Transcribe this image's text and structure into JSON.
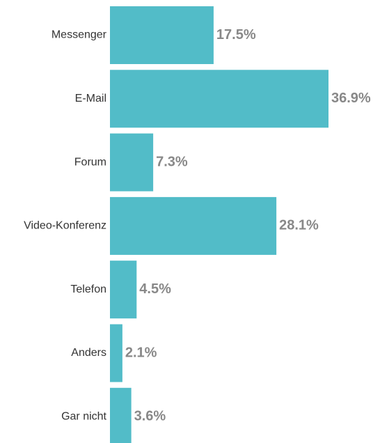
{
  "chart_data": {
    "type": "bar",
    "orientation": "horizontal",
    "categories": [
      "Messenger",
      "E-Mail",
      "Forum",
      "Video-Konferenz",
      "Telefon",
      "Anders",
      "Gar nicht"
    ],
    "values": [
      17.5,
      36.9,
      7.3,
      28.1,
      4.5,
      2.1,
      3.6
    ],
    "value_labels": [
      "17.5%",
      "36.9%",
      "7.3%",
      "28.1%",
      "4.5%",
      "2.1%",
      "3.6%"
    ],
    "color": "#52bcc8"
  }
}
